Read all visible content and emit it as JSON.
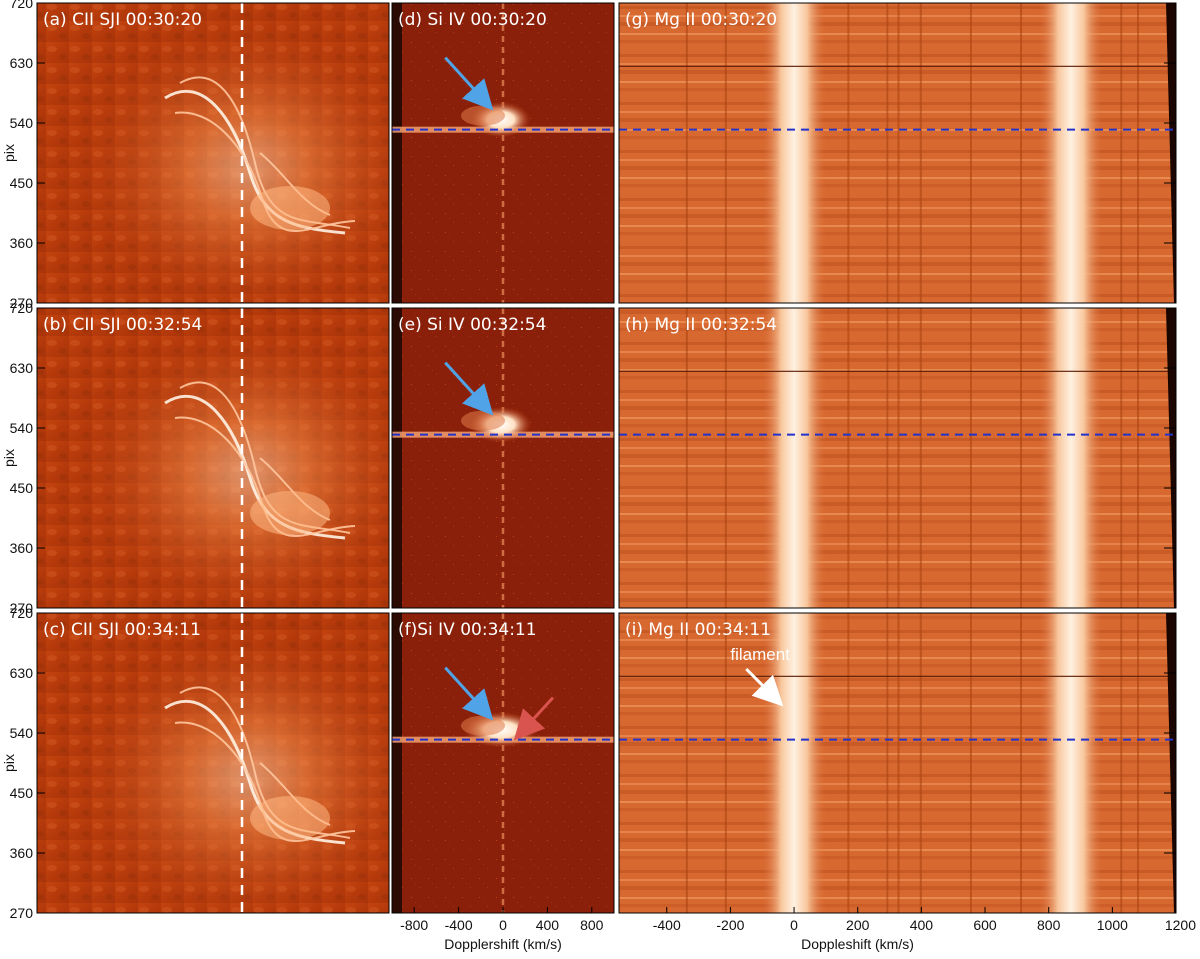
{
  "figure": {
    "rows": [
      {
        "sji_label": "(a) CII SJI 00:30:20",
        "si_label": "(d) Si IV 00:30:20",
        "mg_label": "(g) Mg II 00:30:20"
      },
      {
        "sji_label": "(b) CII SJI 00:32:54",
        "si_label": "(e) Si IV 00:32:54",
        "mg_label": "(h) Mg II 00:32:54"
      },
      {
        "sji_label": "(c) CII SJI 00:34:11",
        "si_label": "(f)Si IV 00:34:11",
        "mg_label": "(i) Mg II 00:34:11"
      }
    ],
    "y_axis_label": "pix",
    "y_ticks": [
      "720",
      "630",
      "540",
      "450",
      "360",
      "270"
    ],
    "si_x_ticks": [
      "-800",
      "-400",
      "0",
      "400",
      "800"
    ],
    "si_x_label": "Dopplershift (km/s)",
    "mg_x_ticks": [
      "-400",
      "-200",
      "0",
      "200",
      "400",
      "600",
      "800",
      "1000",
      "1200"
    ],
    "mg_x_label": "Doppleshift (km/s)",
    "filament_annotation": "filament",
    "colors": {
      "sji_base": "#b83a0c",
      "si_base": "#8a200a",
      "mg_base": "#d86a34",
      "arrow_blue": "#4fa3e6",
      "arrow_red": "#d9534f",
      "dash_blue": "#2233cc"
    }
  },
  "chart_data": [
    {
      "type": "heatmap",
      "panel": "CII SJI",
      "ylabel": "pix",
      "ylim": [
        270,
        720
      ],
      "yticks": [
        720,
        630,
        540,
        450,
        360,
        270
      ],
      "times": [
        "00:30:20",
        "00:32:54",
        "00:34:11"
      ]
    },
    {
      "type": "heatmap",
      "panel": "Si IV",
      "xlabel": "Dopplershift (km/s)",
      "xlim": [
        -1000,
        1000
      ],
      "xticks": [
        -800,
        -400,
        0,
        400,
        800
      ],
      "ylim": [
        270,
        720
      ],
      "reference_row_pix": 530,
      "times": [
        "00:30:20",
        "00:32:54",
        "00:34:11"
      ]
    },
    {
      "type": "heatmap",
      "panel": "Mg II",
      "xlabel": "Doppleshift (km/s)",
      "xlim": [
        -550,
        1200
      ],
      "xticks": [
        -400,
        -200,
        0,
        200,
        400,
        600,
        800,
        1000,
        1200
      ],
      "ylim": [
        270,
        720
      ],
      "reference_row_pix": 530,
      "bright_line_centers_kms": [
        0,
        870
      ],
      "times": [
        "00:30:20",
        "00:32:54",
        "00:34:11"
      ]
    }
  ]
}
